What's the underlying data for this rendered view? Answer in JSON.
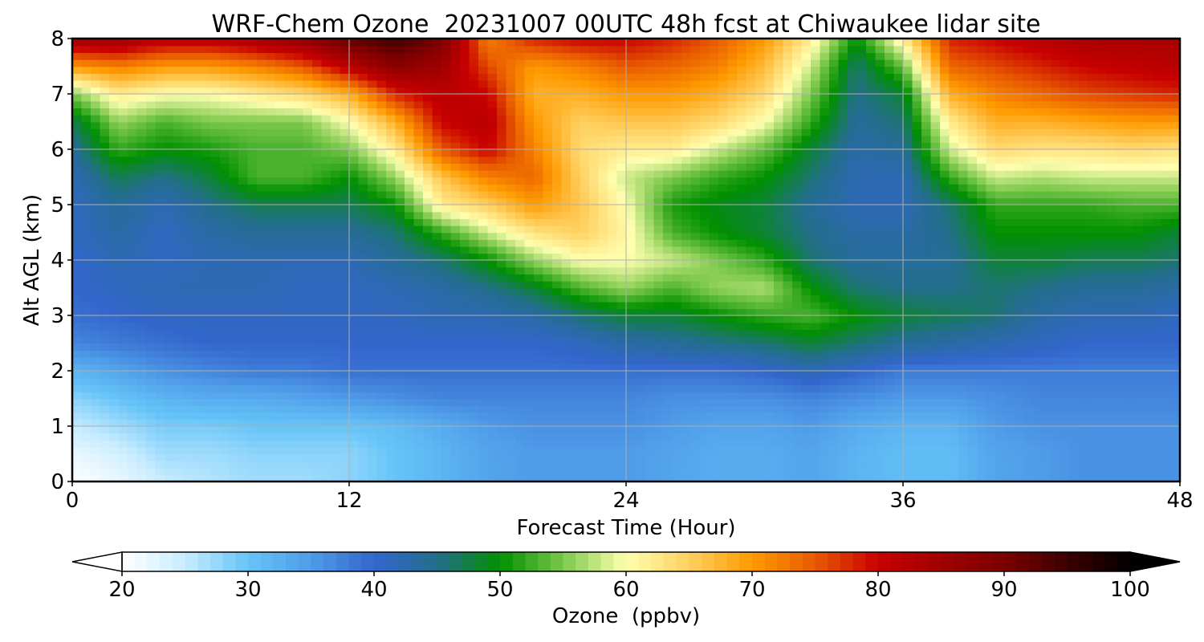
{
  "chart_data": {
    "type": "heatmap",
    "title": "WRF-Chem Ozone  20231007 00UTC 48h fcst at Chiwaukee lidar site",
    "xlabel": "Forecast Time (Hour)",
    "ylabel": "Alt AGL (km)",
    "xlim": [
      0,
      48
    ],
    "ylim": [
      0,
      8
    ],
    "x_ticks": [
      0,
      12,
      24,
      36,
      48
    ],
    "y_ticks": [
      0,
      1,
      2,
      3,
      4,
      5,
      6,
      7,
      8
    ],
    "grid": true,
    "colorbar": {
      "label": "Ozone  (ppbv)",
      "min": 20,
      "max": 100,
      "ticks": [
        20,
        30,
        40,
        50,
        60,
        70,
        80,
        90,
        100
      ],
      "extend": "both",
      "stops": [
        {
          "v": 20,
          "c": "#ffffff"
        },
        {
          "v": 25,
          "c": "#c8ecff"
        },
        {
          "v": 30,
          "c": "#66c4f8"
        },
        {
          "v": 35,
          "c": "#4f9ce8"
        },
        {
          "v": 40,
          "c": "#3366cc"
        },
        {
          "v": 45,
          "c": "#236e8c"
        },
        {
          "v": 50,
          "c": "#009000"
        },
        {
          "v": 55,
          "c": "#7cc84c"
        },
        {
          "v": 60,
          "c": "#ffffb0"
        },
        {
          "v": 65,
          "c": "#ffd060"
        },
        {
          "v": 70,
          "c": "#ff9a00"
        },
        {
          "v": 75,
          "c": "#e85a00"
        },
        {
          "v": 80,
          "c": "#c80000"
        },
        {
          "v": 90,
          "c": "#7a0000"
        },
        {
          "v": 100,
          "c": "#000000"
        }
      ]
    },
    "hours": [
      0,
      2,
      4,
      6,
      8,
      10,
      12,
      14,
      16,
      18,
      20,
      22,
      24,
      26,
      28,
      30,
      32,
      34,
      36,
      38,
      40,
      42,
      44,
      46,
      48
    ],
    "altitudes_km": [
      0,
      0.5,
      1,
      1.5,
      2,
      2.5,
      3,
      3.5,
      4,
      4.5,
      5,
      5.5,
      6,
      6.5,
      7,
      7.5,
      8
    ],
    "ozone_ppbv": [
      [
        20,
        22,
        25,
        28,
        32,
        37,
        39,
        40,
        40,
        41,
        41,
        42,
        44,
        47,
        55,
        70,
        85
      ],
      [
        22,
        24,
        27,
        30,
        34,
        38,
        40,
        41,
        42,
        43,
        44,
        47,
        52,
        56,
        62,
        72,
        85
      ],
      [
        25,
        27,
        29,
        32,
        36,
        39,
        41,
        42,
        41,
        41,
        42,
        45,
        50,
        53,
        60,
        70,
        82
      ],
      [
        26,
        27,
        29,
        33,
        37,
        40,
        41,
        42,
        42,
        43,
        45,
        48,
        51,
        55,
        60,
        70,
        82
      ],
      [
        27,
        28,
        30,
        33,
        38,
        40,
        41,
        42,
        42,
        44,
        47,
        53,
        53,
        55,
        62,
        72,
        84
      ],
      [
        27,
        28,
        30,
        34,
        38,
        40,
        41,
        41,
        42,
        44,
        47,
        53,
        53,
        55,
        64,
        75,
        87
      ],
      [
        28,
        28,
        30,
        35,
        39,
        40,
        41,
        41,
        42,
        44,
        47,
        50,
        55,
        60,
        68,
        82,
        92
      ],
      [
        30,
        30,
        31,
        36,
        39,
        40,
        41,
        42,
        44,
        46,
        50,
        56,
        62,
        68,
        78,
        88,
        95
      ],
      [
        32,
        32,
        33,
        37,
        39,
        40,
        42,
        43,
        46,
        52,
        62,
        66,
        75,
        80,
        82,
        85,
        90
      ],
      [
        34,
        34,
        35,
        37,
        39,
        40,
        42,
        45,
        50,
        58,
        65,
        72,
        80,
        82,
        80,
        76,
        72
      ],
      [
        35,
        35,
        36,
        37,
        39,
        40,
        43,
        48,
        56,
        63,
        70,
        74,
        72,
        70,
        68,
        70,
        78
      ],
      [
        35,
        35,
        36,
        37,
        39,
        41,
        46,
        53,
        60,
        65,
        66,
        65,
        64,
        65,
        68,
        72,
        80
      ],
      [
        35,
        35,
        36,
        37,
        39,
        43,
        48,
        56,
        60,
        61,
        60,
        58,
        62,
        66,
        70,
        75,
        80
      ],
      [
        34,
        34,
        35,
        36,
        39,
        44,
        48,
        53,
        58,
        53,
        51,
        55,
        62,
        66,
        70,
        74,
        78
      ],
      [
        33,
        33,
        34,
        36,
        39,
        45,
        50,
        56,
        55,
        50,
        49,
        52,
        58,
        64,
        68,
        72,
        75
      ],
      [
        33,
        33,
        34,
        36,
        40,
        46,
        52,
        57,
        52,
        48,
        48,
        50,
        54,
        60,
        64,
        67,
        70
      ],
      [
        34,
        34,
        35,
        37,
        42,
        48,
        53,
        50,
        46,
        45,
        44,
        46,
        48,
        52,
        55,
        58,
        62
      ],
      [
        32,
        32,
        33,
        36,
        40,
        46,
        50,
        46,
        44,
        43,
        42,
        42,
        43,
        44,
        45,
        46,
        50
      ],
      [
        31,
        31,
        32,
        35,
        38,
        44,
        48,
        45,
        44,
        43,
        42,
        42,
        44,
        46,
        48,
        54,
        62
      ],
      [
        31,
        31,
        32,
        35,
        38,
        43,
        47,
        45,
        44,
        45,
        46,
        52,
        58,
        62,
        68,
        74,
        78
      ],
      [
        34,
        34,
        35,
        36,
        38,
        42,
        46,
        46,
        48,
        50,
        52,
        58,
        64,
        68,
        72,
        76,
        80
      ],
      [
        35,
        35,
        36,
        37,
        38,
        41,
        43,
        45,
        48,
        50,
        52,
        57,
        63,
        68,
        74,
        78,
        82
      ],
      [
        36,
        36,
        36,
        37,
        38,
        40,
        42,
        44,
        47,
        50,
        52,
        58,
        63,
        69,
        76,
        80,
        84
      ],
      [
        36,
        36,
        36,
        37,
        38,
        40,
        42,
        44,
        47,
        50,
        53,
        58,
        64,
        70,
        77,
        81,
        84
      ],
      [
        36,
        36,
        36,
        37,
        38,
        40,
        41,
        43,
        46,
        48,
        53,
        58,
        63,
        70,
        78,
        82,
        84
      ]
    ]
  }
}
